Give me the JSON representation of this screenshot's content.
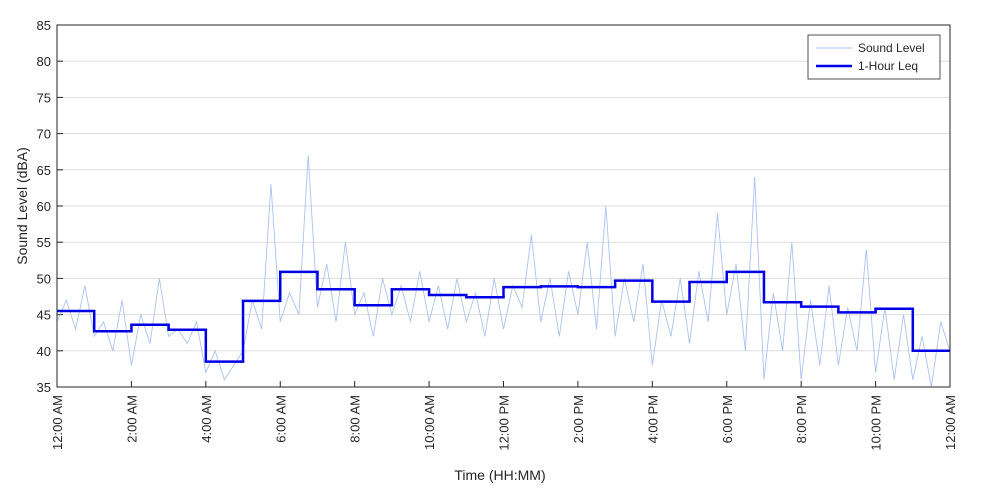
{
  "chart_data": {
    "type": "line",
    "xlabel": "Time (HH:MM)",
    "ylabel": "Sound Level (dBA)",
    "xlim": [
      0,
      24
    ],
    "ylim": [
      35,
      85
    ],
    "xticks": [
      {
        "value": 0,
        "label": "12:00 AM"
      },
      {
        "value": 2,
        "label": "2:00 AM"
      },
      {
        "value": 4,
        "label": "4:00 AM"
      },
      {
        "value": 6,
        "label": "6:00 AM"
      },
      {
        "value": 8,
        "label": "8:00 AM"
      },
      {
        "value": 10,
        "label": "10:00 AM"
      },
      {
        "value": 12,
        "label": "12:00 PM"
      },
      {
        "value": 14,
        "label": "2:00 PM"
      },
      {
        "value": 16,
        "label": "4:00 PM"
      },
      {
        "value": 18,
        "label": "6:00 PM"
      },
      {
        "value": 20,
        "label": "8:00 PM"
      },
      {
        "value": 22,
        "label": "10:00 PM"
      },
      {
        "value": 24,
        "label": "12:00 AM"
      }
    ],
    "yticks": [
      35,
      40,
      45,
      50,
      55,
      60,
      65,
      70,
      75,
      80,
      85
    ],
    "grid": true,
    "legend": "upper right",
    "series": [
      {
        "name": "Sound Level",
        "color": "#a9c3f2",
        "step": false,
        "x": [
          0,
          0.25,
          0.5,
          0.75,
          1,
          1.25,
          1.5,
          1.75,
          2,
          2.25,
          2.5,
          2.75,
          3,
          3.25,
          3.5,
          3.75,
          4,
          4.25,
          4.5,
          4.75,
          5,
          5.25,
          5.5,
          5.75,
          6,
          6.25,
          6.5,
          6.75,
          7,
          7.25,
          7.5,
          7.75,
          8,
          8.25,
          8.5,
          8.75,
          9,
          9.25,
          9.5,
          9.75,
          10,
          10.25,
          10.5,
          10.75,
          11,
          11.25,
          11.5,
          11.75,
          12,
          12.25,
          12.5,
          12.75,
          13,
          13.25,
          13.5,
          13.75,
          14,
          14.25,
          14.5,
          14.75,
          15,
          15.25,
          15.5,
          15.75,
          16,
          16.25,
          16.5,
          16.75,
          17,
          17.25,
          17.5,
          17.75,
          18,
          18.25,
          18.5,
          18.75,
          19,
          19.25,
          19.5,
          19.75,
          20,
          20.25,
          20.5,
          20.75,
          21,
          21.25,
          21.5,
          21.75,
          22,
          22.25,
          22.5,
          22.75,
          23,
          23.25,
          23.5,
          23.75,
          24
        ],
        "values": [
          44,
          47,
          43,
          49,
          42,
          44,
          40,
          47,
          38,
          45,
          41,
          50,
          42,
          43,
          41,
          44,
          37,
          40,
          36,
          38,
          40,
          47,
          43,
          63,
          44,
          48,
          45,
          67,
          46,
          52,
          44,
          55,
          45,
          48,
          42,
          50,
          45,
          49,
          44,
          51,
          44,
          49,
          43,
          50,
          44,
          48,
          42,
          50,
          43,
          49,
          46,
          56,
          44,
          50,
          42,
          51,
          45,
          55,
          43,
          60,
          42,
          50,
          44,
          52,
          38,
          47,
          42,
          50,
          41,
          51,
          44,
          59,
          45,
          52,
          40,
          64,
          36,
          48,
          40,
          55,
          36,
          47,
          38,
          49,
          38,
          46,
          40,
          54,
          37,
          46,
          36,
          45,
          36,
          42,
          35,
          44,
          40
        ]
      },
      {
        "name": "1-Hour Leq",
        "color": "#0000e6",
        "step": true,
        "x": [
          0,
          1,
          2,
          3,
          4,
          5,
          6,
          7,
          8,
          9,
          10,
          11,
          12,
          13,
          14,
          15,
          16,
          17,
          18,
          19,
          20,
          21,
          22,
          23
        ],
        "values": [
          45.5,
          42.7,
          43.6,
          42.9,
          38.5,
          46.9,
          50.9,
          48.5,
          46.3,
          48.5,
          47.7,
          47.4,
          48.8,
          48.9,
          48.8,
          49.7,
          46.8,
          49.5,
          50.9,
          46.7,
          46.1,
          45.3,
          45.8,
          40.0
        ]
      }
    ]
  }
}
